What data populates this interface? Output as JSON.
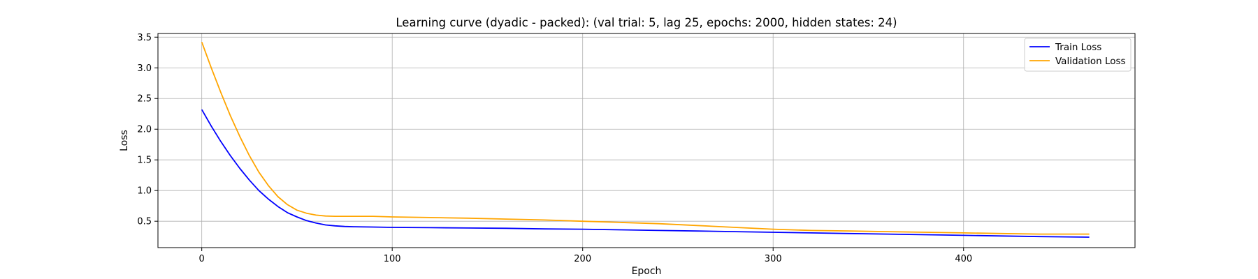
{
  "chart_data": {
    "type": "line",
    "title": "Learning curve (dyadic - packed): (val trial: 5, lag 25, epochs: 2000, hidden states: 24)",
    "xlabel": "Epoch",
    "ylabel": "Loss",
    "xlim": [
      -23,
      490
    ],
    "ylim": [
      0.07,
      3.56
    ],
    "xticks": [
      0,
      100,
      200,
      300,
      400
    ],
    "yticks": [
      0.5,
      1.0,
      1.5,
      2.0,
      2.5,
      3.0,
      3.5
    ],
    "xtick_labels": [
      "0",
      "100",
      "200",
      "300",
      "400"
    ],
    "ytick_labels": [
      "0.5",
      "1.0",
      "1.5",
      "2.0",
      "2.5",
      "3.0",
      "3.5"
    ],
    "grid": true,
    "legend_position": "top-right",
    "series": [
      {
        "name": "Train Loss",
        "color": "#0000ff",
        "x": [
          0,
          5,
          10,
          15,
          20,
          25,
          30,
          35,
          40,
          45,
          50,
          55,
          60,
          65,
          70,
          75,
          80,
          90,
          100,
          120,
          140,
          160,
          180,
          200,
          220,
          240,
          260,
          280,
          300,
          320,
          340,
          360,
          380,
          400,
          420,
          440,
          466
        ],
        "y": [
          2.32,
          2.05,
          1.8,
          1.57,
          1.36,
          1.17,
          1.0,
          0.86,
          0.74,
          0.64,
          0.57,
          0.51,
          0.47,
          0.44,
          0.425,
          0.415,
          0.41,
          0.405,
          0.4,
          0.395,
          0.39,
          0.385,
          0.375,
          0.37,
          0.36,
          0.35,
          0.34,
          0.33,
          0.32,
          0.31,
          0.3,
          0.29,
          0.28,
          0.27,
          0.26,
          0.25,
          0.24
        ]
      },
      {
        "name": "Validation Loss",
        "color": "#ffa500",
        "x": [
          0,
          5,
          10,
          15,
          20,
          25,
          30,
          35,
          40,
          45,
          50,
          55,
          60,
          65,
          70,
          75,
          80,
          90,
          100,
          120,
          140,
          160,
          180,
          200,
          220,
          240,
          260,
          280,
          300,
          320,
          340,
          360,
          380,
          400,
          420,
          440,
          466
        ],
        "y": [
          3.42,
          3.0,
          2.6,
          2.22,
          1.88,
          1.57,
          1.3,
          1.08,
          0.9,
          0.77,
          0.68,
          0.63,
          0.6,
          0.585,
          0.58,
          0.58,
          0.58,
          0.58,
          0.57,
          0.56,
          0.55,
          0.535,
          0.52,
          0.5,
          0.48,
          0.46,
          0.43,
          0.4,
          0.37,
          0.35,
          0.34,
          0.33,
          0.32,
          0.31,
          0.3,
          0.29,
          0.29
        ]
      }
    ]
  }
}
